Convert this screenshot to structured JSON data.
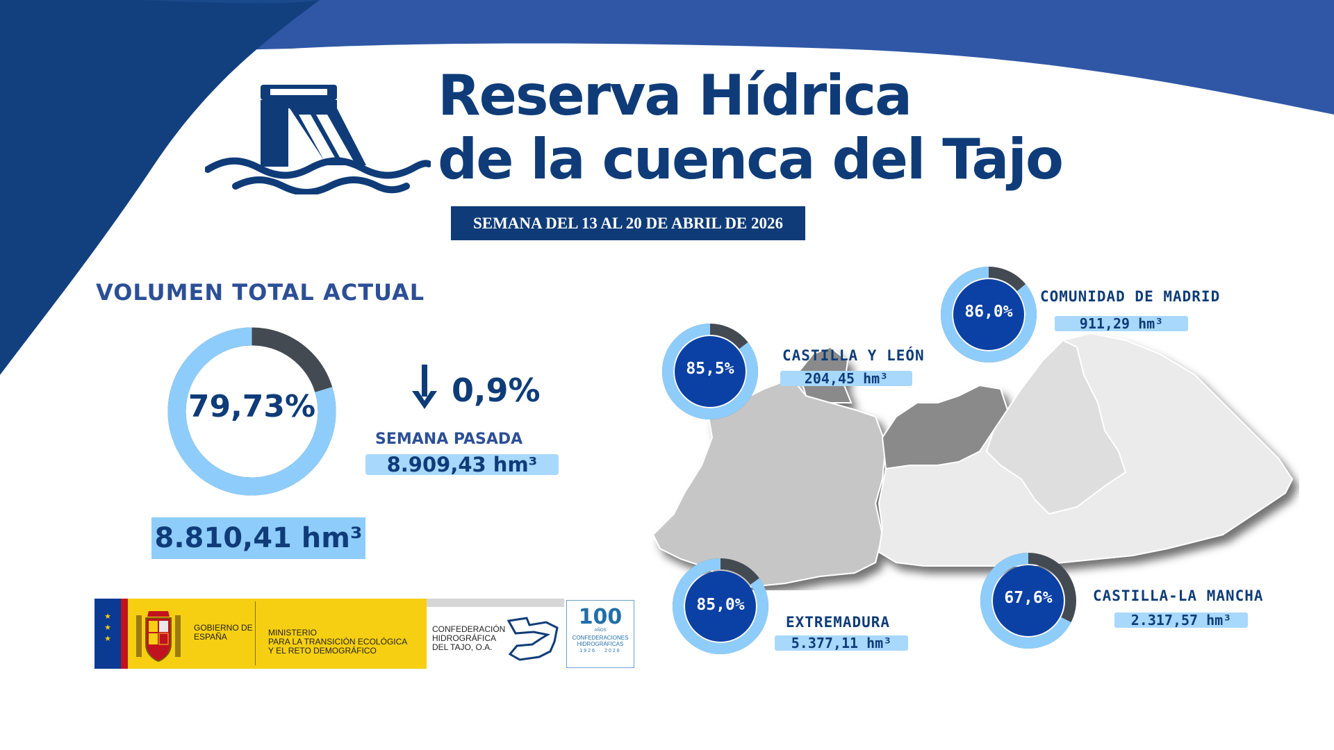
{
  "header": {
    "title_line1": "Reserva Hídrica",
    "title_line2": "de la cuenca del Tajo",
    "week": "SEMANA DEL 13 AL 20 DE ABRIL DE 2026",
    "dam_icon": "dam-water-icon"
  },
  "total": {
    "heading": "VOLUMEN TOTAL ACTUAL",
    "percent_label": "79,73%",
    "percent": 79.73,
    "volume": "8.810,41 hm³",
    "change": "0,9%",
    "change_icon": "arrow-down-icon",
    "last_week_label": "SEMANA PASADA",
    "last_week_volume": "8.909,43 hm³"
  },
  "regions": [
    {
      "name": "CASTILLA Y LEÓN",
      "percent_label": "85,5%",
      "percent": 85.5,
      "volume": "204,45 hm³"
    },
    {
      "name": "COMUNIDAD DE MADRID",
      "percent_label": "86,0%",
      "percent": 86.0,
      "volume": "911,29 hm³"
    },
    {
      "name": "EXTREMADURA",
      "percent_label": "85,0%",
      "percent": 85.0,
      "volume": "5.377,11 hm³"
    },
    {
      "name": "CASTILLA-LA MANCHA",
      "percent_label": "67,6%",
      "percent": 67.6,
      "volume": "2.317,57 hm³"
    }
  ],
  "logos": {
    "gobierno": "GOBIERNO DE ESPAÑA",
    "ministerio_line1": "MINISTERIO",
    "ministerio_line2": "PARA LA TRANSICIÓN ECOLÓGICA",
    "ministerio_line3": "Y EL RETO DEMOGRÁFICO",
    "confederacion_line1": "CONFEDERACIÓN",
    "confederacion_line2": "HIDROGRÁFICA",
    "confederacion_line3": "DEL TAJO, O.A.",
    "anniversary_number": "100",
    "anniversary_years": "AÑOS",
    "anniversary_line1": "CONFEDERACIONES",
    "anniversary_line2": "HIDROGRÁFICAS",
    "anniversary_dates": "1926 · 2026"
  },
  "colors": {
    "navy": "#0f3c78",
    "royal_blue": "#2f57a6",
    "light_blue": "#8ecdfb",
    "ring_gray": "#444a52",
    "flag_yellow": "#f6cf12",
    "flag_red": "#c1121f"
  }
}
